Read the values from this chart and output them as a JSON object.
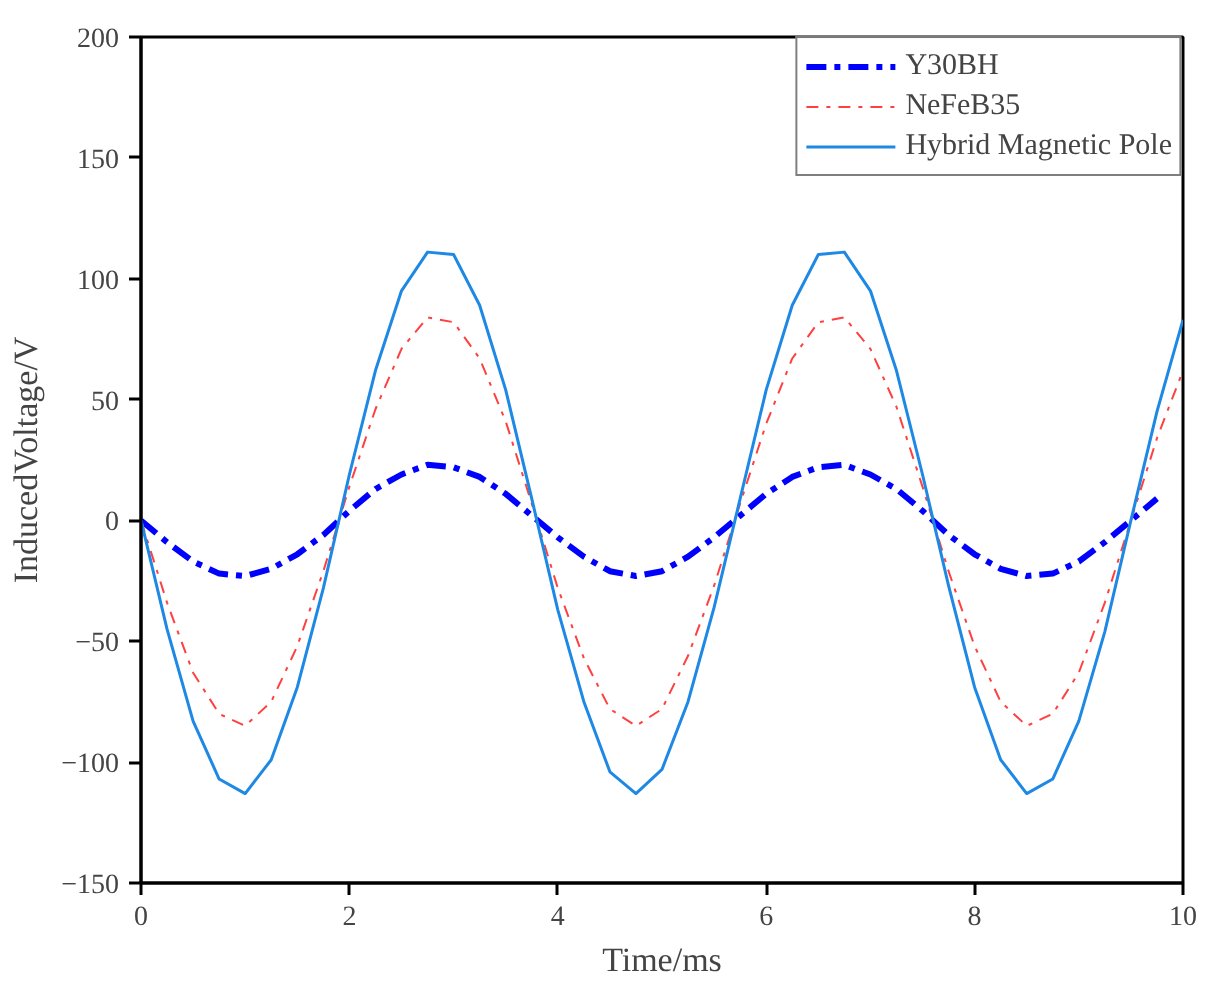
{
  "chart_data": {
    "type": "line",
    "xlabel": "Time/ms",
    "ylabel": "InducedVoltage/V",
    "xlim": [
      0,
      10
    ],
    "ylim": [
      -150,
      200
    ],
    "xticks": [
      0,
      2,
      4,
      6,
      8,
      10
    ],
    "yticks": [
      -150,
      -100,
      -50,
      0,
      50,
      100,
      150,
      200
    ],
    "grid": false,
    "legend": "top right",
    "series": [
      {
        "name": "Y30BH",
        "color": "#0000ff",
        "line_style": "dashdot",
        "x": [
          0,
          0.25,
          0.5,
          0.75,
          1,
          1.25,
          1.5,
          1.75,
          2,
          2.25,
          2.5,
          2.75,
          3,
          3.25,
          3.5,
          3.75,
          4,
          4.25,
          4.5,
          4.75,
          5,
          5.25,
          5.5,
          5.75,
          6,
          6.25,
          6.5,
          6.75,
          7,
          7.25,
          7.5,
          7.75,
          8,
          8.25,
          8.5,
          8.75,
          9,
          9.25,
          9.5,
          9.75
        ],
        "values": [
          0,
          -9,
          -17,
          -22,
          -23,
          -20,
          -14,
          -6,
          4,
          13,
          19,
          23,
          22,
          18,
          11,
          2,
          -7,
          -15,
          -21,
          -23,
          -21,
          -15,
          -7,
          2,
          11,
          18,
          22,
          23,
          19,
          13,
          4,
          -6,
          -14,
          -20,
          -23,
          -22,
          -17,
          -9,
          0,
          9
        ]
      },
      {
        "name": "NeFeB35",
        "color": "#ff4040",
        "line_style": "dashdot",
        "x": [
          0,
          0.25,
          0.5,
          0.75,
          1,
          1.25,
          1.5,
          1.75,
          2,
          2.25,
          2.5,
          2.75,
          3,
          3.25,
          3.5,
          3.75,
          4,
          4.25,
          4.5,
          4.75,
          5,
          5.25,
          5.5,
          5.75,
          6,
          6.25,
          6.5,
          6.75,
          7,
          7.25,
          7.5,
          7.75,
          8,
          8.25,
          8.5,
          8.75,
          9,
          9.25,
          9.5,
          9.75,
          10
        ],
        "values": [
          0,
          -34,
          -63,
          -80,
          -85,
          -75,
          -52,
          -21,
          14,
          46,
          71,
          84,
          82,
          67,
          41,
          7,
          -28,
          -57,
          -78,
          -85,
          -78,
          -56,
          -27,
          7,
          40,
          67,
          82,
          84,
          71,
          47,
          14,
          -21,
          -52,
          -75,
          -85,
          -80,
          -63,
          -34,
          0,
          34,
          62
        ]
      },
      {
        "name": "Hybrid Magnetic Pole",
        "color": "#1e88e5",
        "line_style": "solid",
        "x": [
          0,
          0.25,
          0.5,
          0.75,
          1,
          1.25,
          1.5,
          1.75,
          2,
          2.25,
          2.5,
          2.75,
          3,
          3.25,
          3.5,
          3.75,
          4,
          4.25,
          4.5,
          4.75,
          5,
          5.25,
          5.5,
          5.75,
          6,
          6.25,
          6.5,
          6.75,
          7,
          7.25,
          7.5,
          7.75,
          8,
          8.25,
          8.5,
          8.75,
          9,
          9.25,
          9.5,
          9.75,
          10
        ],
        "values": [
          0,
          -45,
          -83,
          -107,
          -113,
          -99,
          -69,
          -28,
          19,
          62,
          95,
          111,
          110,
          89,
          54,
          9,
          -37,
          -75,
          -104,
          -113,
          -103,
          -75,
          -36,
          9,
          54,
          89,
          110,
          111,
          95,
          62,
          19,
          -27,
          -69,
          -99,
          -113,
          -107,
          -83,
          -46,
          0,
          45,
          83
        ]
      }
    ]
  }
}
